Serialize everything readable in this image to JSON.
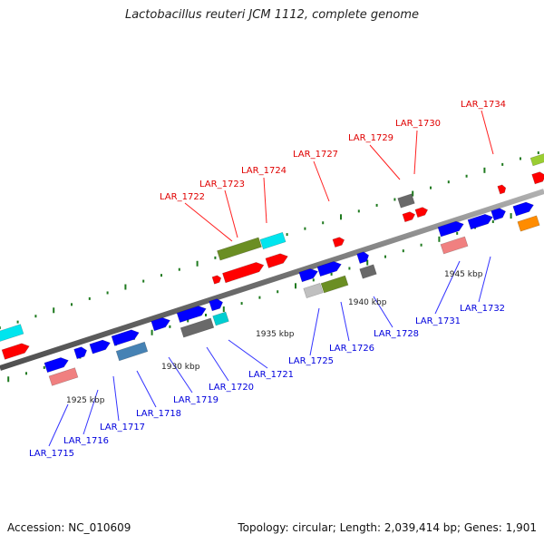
{
  "title": "Lactobacillus reuteri JCM 1112, complete genome",
  "footer": {
    "accession": "Accession: NC_010609",
    "summary": "Topology: circular; Length: 2,039,414 bp; Genes: 1,901"
  },
  "colors": {
    "backbone": "#7a7a7a",
    "tick": "#1f7a1f",
    "label_top": "#e00000",
    "label_bottom": "#0000dd",
    "leader": "#3333ff",
    "leader_top": "#ff2020"
  },
  "scale_labels": [
    "1925 kbp",
    "1930 kbp",
    "1935 kbp",
    "1940 kbp",
    "1945 kbp"
  ],
  "top_labels": [
    "LAR_1722",
    "LAR_1723",
    "LAR_1724",
    "LAR_1727",
    "LAR_1729",
    "LAR_1730",
    "LAR_1734"
  ],
  "bottom_labels": [
    "LAR_1715",
    "LAR_1716",
    "LAR_1717",
    "LAR_1718",
    "LAR_1719",
    "LAR_1720",
    "LAR_1721",
    "LAR_1725",
    "LAR_1726",
    "LAR_1728",
    "LAR_1731",
    "LAR_1732"
  ],
  "features": [
    {
      "id": "f1",
      "color": "#00e5ee",
      "shape": "box"
    },
    {
      "id": "f2",
      "color": "#ff0000",
      "shape": "arrow"
    },
    {
      "id": "f3",
      "color": "#0000ff",
      "shape": "arrow"
    },
    {
      "id": "f4",
      "color": "#f08080",
      "shape": "box"
    },
    {
      "id": "f5",
      "color": "#0000ff",
      "shape": "arrow"
    },
    {
      "id": "f6",
      "color": "#0000ff",
      "shape": "arrow"
    },
    {
      "id": "f7",
      "color": "#0000ff",
      "shape": "arrow"
    },
    {
      "id": "f8",
      "color": "#4682b4",
      "shape": "box"
    },
    {
      "id": "f9",
      "color": "#0000ff",
      "shape": "arrow"
    },
    {
      "id": "f10",
      "color": "#0000ff",
      "shape": "arrow"
    },
    {
      "id": "f11",
      "color": "#696969",
      "shape": "box"
    },
    {
      "id": "f12",
      "color": "#0000ff",
      "shape": "arrow"
    },
    {
      "id": "f13",
      "color": "#00ced1",
      "shape": "box"
    },
    {
      "id": "f14",
      "color": "#ff0000",
      "shape": "arrow"
    },
    {
      "id": "f15",
      "color": "#6b8e23",
      "shape": "box"
    },
    {
      "id": "f16",
      "color": "#ff0000",
      "shape": "arrow"
    },
    {
      "id": "f17",
      "color": "#00e5ee",
      "shape": "box"
    },
    {
      "id": "f18",
      "color": "#ff0000",
      "shape": "arrow"
    },
    {
      "id": "f19",
      "color": "#0000ff",
      "shape": "arrow"
    },
    {
      "id": "f20",
      "color": "#0000ff",
      "shape": "arrow"
    },
    {
      "id": "f21",
      "color": "#c0c0c0",
      "shape": "box"
    },
    {
      "id": "f22",
      "color": "#6b8e23",
      "shape": "box"
    },
    {
      "id": "f23",
      "color": "#ff0000",
      "shape": "arrow"
    },
    {
      "id": "f24",
      "color": "#0000ff",
      "shape": "arrow"
    },
    {
      "id": "f25",
      "color": "#696969",
      "shape": "box"
    },
    {
      "id": "f26",
      "color": "#696969",
      "shape": "box"
    },
    {
      "id": "f27",
      "color": "#ff0000",
      "shape": "arrow"
    },
    {
      "id": "f28",
      "color": "#ff0000",
      "shape": "arrow"
    },
    {
      "id": "f29",
      "color": "#0000ff",
      "shape": "arrow"
    },
    {
      "id": "f30",
      "color": "#f08080",
      "shape": "box"
    },
    {
      "id": "f31",
      "color": "#0000ff",
      "shape": "arrow"
    },
    {
      "id": "f32",
      "color": "#0000ff",
      "shape": "arrow"
    },
    {
      "id": "f33",
      "color": "#ff0000",
      "shape": "arrow"
    },
    {
      "id": "f34",
      "color": "#0000ff",
      "shape": "arrow"
    },
    {
      "id": "f35",
      "color": "#ff8c00",
      "shape": "box"
    },
    {
      "id": "f36",
      "color": "#9acd32",
      "shape": "box"
    },
    {
      "id": "f37",
      "color": "#ff0000",
      "shape": "arrow"
    }
  ]
}
